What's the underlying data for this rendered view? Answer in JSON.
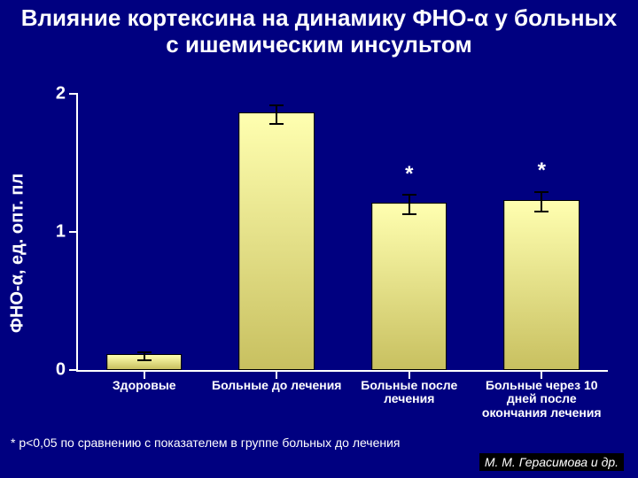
{
  "title": "Влияние кортексина на динамику ФНО-α у больных с ишемическим инсультом",
  "title_fontsize": 26,
  "title_color": "#ffffff",
  "background_color": "#000080",
  "xtick_label_color": "#ffffff",
  "ytick_label_color": "#ffffff",
  "footnote": "* p<0,05 по сравнению с показателем в группе больных до лечения",
  "footnote_fontsize": 14,
  "citation": "М. М. Герасимова и др.",
  "citation_fontsize": 14,
  "chart": {
    "type": "bar",
    "ylabel": "ФНО-α, ед. опт. пл",
    "ylabel_fontsize": 20,
    "ylim": [
      0,
      2
    ],
    "yticks": [
      0,
      1,
      2
    ],
    "ytick_fontsize": 20,
    "xlabel_fontsize": 14,
    "axis_color": "#ffffff",
    "errorbar_color": "#000000",
    "errorbar_cap_width": 16,
    "sig_fontsize": 24,
    "bar_width_pct": 56,
    "bar_gradient_top": "#ffffb0",
    "bar_gradient_bottom": "#c8c060",
    "bar_border_color": "#000000",
    "categories": [
      {
        "label": "Здоровые",
        "value": 0.1,
        "err": 0.03,
        "sig": ""
      },
      {
        "label": "Больные до лечения",
        "value": 1.85,
        "err": 0.07,
        "sig": ""
      },
      {
        "label": "Больные после лечения",
        "value": 1.2,
        "err": 0.07,
        "sig": "*"
      },
      {
        "label": "Больные через 10 дней после окончания лечения",
        "value": 1.22,
        "err": 0.07,
        "sig": "*"
      }
    ]
  }
}
